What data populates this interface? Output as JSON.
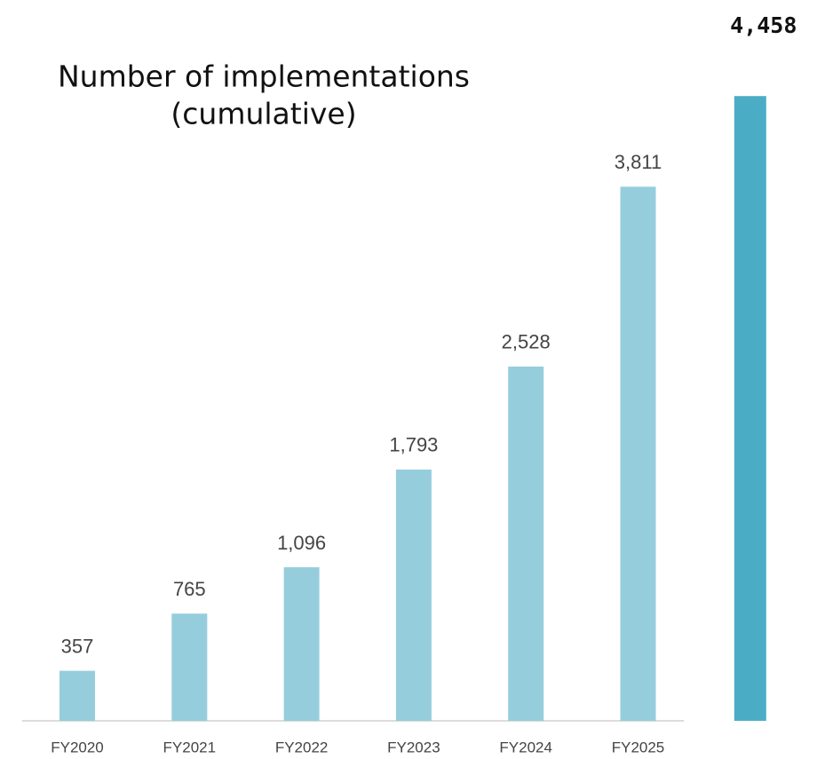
{
  "chart_data": {
    "type": "bar",
    "title": [
      "Number of implementations",
      "(cumulative)"
    ],
    "categories": [
      "FY2020",
      "FY2021",
      "FY2022",
      "FY2023",
      "FY2024",
      "FY2025",
      null
    ],
    "values": [
      357,
      765,
      1096,
      1793,
      2528,
      3811,
      4458
    ],
    "value_labels": [
      "357",
      "765",
      "1,096",
      "1,793",
      "2,528",
      "3,811",
      "4,458"
    ],
    "colors": [
      "#96cddc",
      "#96cddc",
      "#96cddc",
      "#96cddc",
      "#96cddc",
      "#96cddc",
      "#4badc5"
    ],
    "ylim": [
      0,
      4700
    ]
  }
}
